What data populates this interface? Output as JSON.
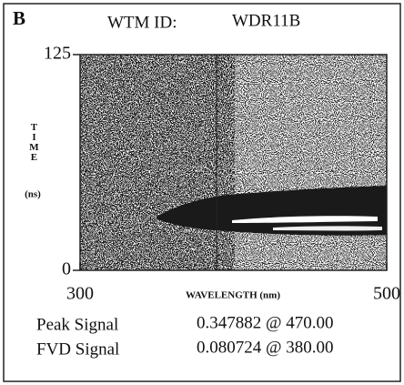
{
  "chart_data": {
    "type": "image",
    "panel": "B",
    "id_label": "WTM ID:",
    "id_value": "WDR11B",
    "xlabel": "WAVELENGTH (nm)",
    "ylabel": "TIME",
    "yunit": "(ns)",
    "xlim": [
      300,
      500
    ],
    "xticks": [
      300,
      500
    ],
    "ylim": [
      0,
      125
    ],
    "yticks": [
      0,
      125
    ],
    "readouts": [
      {
        "name": "Peak Signal",
        "value": "0.347882 @ 470.00"
      },
      {
        "name": "FVD Signal",
        "value": "0.080724 @ 380.00"
      }
    ]
  }
}
